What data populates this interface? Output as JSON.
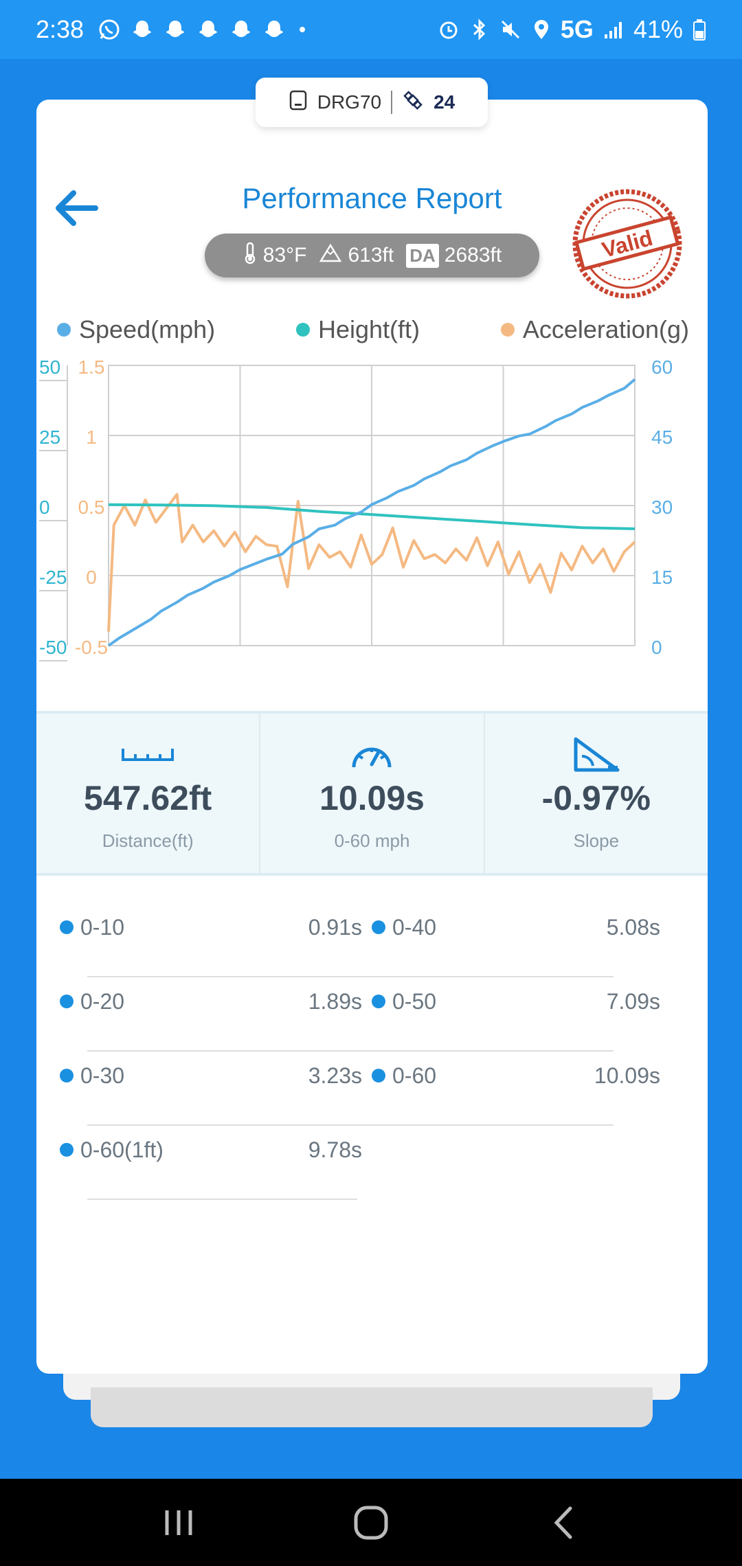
{
  "status_bar": {
    "time": "2:38",
    "network": "5G",
    "battery": "41%",
    "left_icons": [
      "whatsapp-icon",
      "snapchat-icon",
      "snapchat-icon",
      "snapchat-icon",
      "snapchat-icon",
      "snapchat-icon",
      "dot-icon"
    ],
    "right_icons": [
      "alarm-icon",
      "bluetooth-icon",
      "mute-icon",
      "location-icon",
      "signal-icon",
      "battery-icon"
    ]
  },
  "device": {
    "name": "DRG70",
    "satellites": "24"
  },
  "header": {
    "title": "Performance Report",
    "stamp_text": "Valid"
  },
  "conditions": {
    "temperature": "83°F",
    "altitude": "613ft",
    "da_label": "DA",
    "density_altitude": "2683ft"
  },
  "colors": {
    "speed": "#5aaee6",
    "height": "#2fc2bf",
    "acceleration": "#f4b982",
    "accent": "#1a86d6",
    "stamp": "#c9442f"
  },
  "chart_data": {
    "type": "line",
    "series": [
      {
        "name": "Speed(mph)",
        "axis": "right",
        "x": [
          0,
          0.02,
          0.05,
          0.08,
          0.1,
          0.13,
          0.15,
          0.18,
          0.2,
          0.23,
          0.25,
          0.28,
          0.3,
          0.33,
          0.35,
          0.38,
          0.4,
          0.43,
          0.45,
          0.48,
          0.5,
          0.53,
          0.55,
          0.58,
          0.6,
          0.63,
          0.65,
          0.68,
          0.7,
          0.73,
          0.75,
          0.78,
          0.8,
          0.83,
          0.85,
          0.88,
          0.9,
          0.93,
          0.95,
          0.98,
          1.0
        ],
        "values": [
          0,
          1.6,
          3.6,
          5.6,
          7.4,
          9.3,
          10.8,
          12.3,
          13.6,
          15,
          16.3,
          17.6,
          18.5,
          19.6,
          21.7,
          23.3,
          25,
          25.8,
          27.2,
          28.6,
          30.2,
          31.7,
          33,
          34.3,
          35.7,
          37.2,
          38.5,
          39.8,
          41.2,
          42.8,
          43.7,
          44.9,
          45.3,
          46.9,
          48.2,
          49.6,
          51,
          52.4,
          53.6,
          55.1,
          57
        ]
      },
      {
        "name": "Height(ft)",
        "axis": "left",
        "x": [
          0,
          0.1,
          0.2,
          0.3,
          0.4,
          0.5,
          0.6,
          0.7,
          0.8,
          0.9,
          1.0
        ],
        "values": [
          0.3,
          0.18,
          -0.05,
          -0.7,
          -2.1,
          -3.2,
          -4.4,
          -5.6,
          -6.8,
          -7.9,
          -8.3
        ]
      },
      {
        "name": "Acceleration(g)",
        "axis": "left2",
        "x": [
          0,
          0.01,
          0.03,
          0.05,
          0.07,
          0.09,
          0.11,
          0.13,
          0.14,
          0.16,
          0.18,
          0.2,
          0.22,
          0.24,
          0.26,
          0.28,
          0.3,
          0.32,
          0.34,
          0.36,
          0.38,
          0.4,
          0.42,
          0.44,
          0.46,
          0.48,
          0.5,
          0.52,
          0.54,
          0.56,
          0.58,
          0.6,
          0.62,
          0.64,
          0.66,
          0.68,
          0.7,
          0.72,
          0.74,
          0.76,
          0.78,
          0.8,
          0.82,
          0.84,
          0.86,
          0.88,
          0.9,
          0.92,
          0.94,
          0.96,
          0.98,
          1.0
        ],
        "values": [
          -0.4,
          0.36,
          0.5,
          0.36,
          0.54,
          0.38,
          0.48,
          0.58,
          0.24,
          0.36,
          0.24,
          0.32,
          0.21,
          0.31,
          0.17,
          0.28,
          0.22,
          0.21,
          -0.08,
          0.53,
          0.05,
          0.22,
          0.13,
          0.17,
          0.06,
          0.29,
          0.08,
          0.15,
          0.34,
          0.06,
          0.25,
          0.12,
          0.15,
          0.09,
          0.19,
          0.11,
          0.27,
          0.07,
          0.24,
          0.01,
          0.17,
          -0.05,
          0.08,
          -0.12,
          0.16,
          0.04,
          0.21,
          0.09,
          0.19,
          0.03,
          0.17,
          0.24
        ]
      }
    ],
    "axes": {
      "speed_right": {
        "ticks": [
          "60",
          "45",
          "30",
          "15",
          "0"
        ],
        "range": [
          0,
          60
        ]
      },
      "height_left": {
        "ticks": [
          "50",
          "25",
          "0",
          "-25",
          "-50"
        ],
        "range": [
          -50,
          50
        ]
      },
      "accel_left": {
        "ticks": [
          "1.5",
          "1",
          "0.5",
          "0",
          "-0.5"
        ],
        "range": [
          -0.5,
          1.5
        ]
      }
    },
    "grid": true,
    "legend_position": "top"
  },
  "stats": [
    {
      "value": "547.62ft",
      "label": "Distance(ft)",
      "icon": "ruler-icon"
    },
    {
      "value": "10.09s",
      "label": "0-60 mph",
      "icon": "speedometer-icon"
    },
    {
      "value": "-0.97%",
      "label": "Slope",
      "icon": "slope-icon"
    }
  ],
  "splits": [
    {
      "label": "0-10",
      "value": "0.91s"
    },
    {
      "label": "0-40",
      "value": "5.08s"
    },
    {
      "label": "0-20",
      "value": "1.89s"
    },
    {
      "label": "0-50",
      "value": "7.09s"
    },
    {
      "label": "0-30",
      "value": "3.23s"
    },
    {
      "label": "0-60",
      "value": "10.09s"
    },
    {
      "label": "0-60(1ft)",
      "value": "9.78s"
    }
  ],
  "nav": {
    "buttons": [
      "recents-icon",
      "home-icon",
      "back-icon"
    ]
  }
}
